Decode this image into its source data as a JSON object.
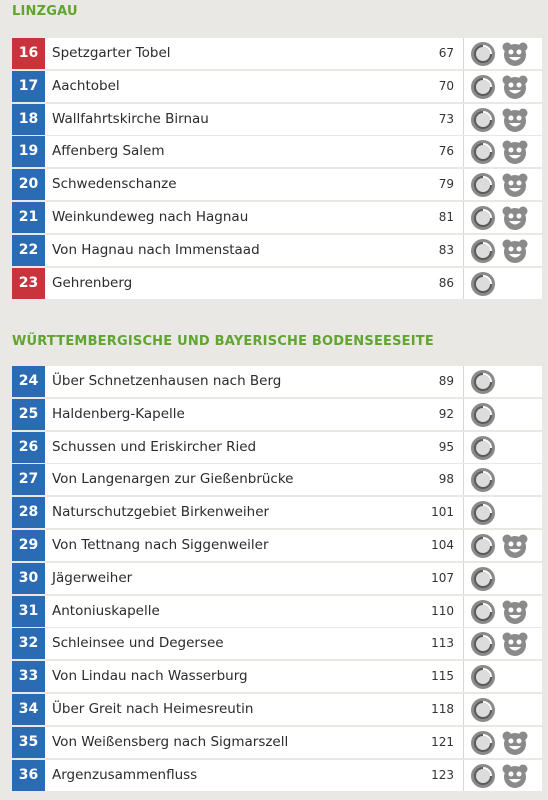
{
  "sections": [
    {
      "title": "LINZGAU",
      "rows": [
        {
          "number": "16",
          "title": "Spetzgarter Tobel",
          "page": "67",
          "color": "#c9343c",
          "kids": true
        },
        {
          "number": "17",
          "title": "Aachtobel",
          "page": "70",
          "color": "#2b6bb3",
          "kids": true
        },
        {
          "number": "18",
          "title": "Wallfahrtskirche Birnau",
          "page": "73",
          "color": "#2b6bb3",
          "kids": true
        },
        {
          "number": "19",
          "title": "Affenberg Salem",
          "page": "76",
          "color": "#2b6bb3",
          "kids": true
        },
        {
          "number": "20",
          "title": "Schwedenschanze",
          "page": "79",
          "color": "#2b6bb3",
          "kids": true
        },
        {
          "number": "21",
          "title": "Weinkundeweg nach Hagnau",
          "page": "81",
          "color": "#2b6bb3",
          "kids": true
        },
        {
          "number": "22",
          "title": "Von Hagnau nach Immenstaad",
          "page": "83",
          "color": "#2b6bb3",
          "kids": true
        },
        {
          "number": "23",
          "title": "Gehrenberg",
          "page": "86",
          "color": "#c9343c",
          "kids": false
        }
      ]
    },
    {
      "title": "WÜRTTEMBERGISCHE UND BAYERISCHE BODENSEESEITE",
      "rows": [
        {
          "number": "24",
          "title": "Über Schnetzenhausen nach Berg",
          "page": "89",
          "color": "#2b6bb3",
          "kids": false
        },
        {
          "number": "25",
          "title": "Haldenberg-Kapelle",
          "page": "92",
          "color": "#2b6bb3",
          "kids": false
        },
        {
          "number": "26",
          "title": "Schussen und Eriskircher Ried",
          "page": "95",
          "color": "#2b6bb3",
          "kids": false
        },
        {
          "number": "27",
          "title": "Von Langenargen zur Gießenbrücke",
          "page": "98",
          "color": "#2b6bb3",
          "kids": false
        },
        {
          "number": "28",
          "title": "Naturschutzgebiet Birkenweiher",
          "page": "101",
          "color": "#2b6bb3",
          "kids": false
        },
        {
          "number": "29",
          "title": "Von Tettnang nach Siggenweiler",
          "page": "104",
          "color": "#2b6bb3",
          "kids": true
        },
        {
          "number": "30",
          "title": "Jägerweiher",
          "page": "107",
          "color": "#2b6bb3",
          "kids": false
        },
        {
          "number": "31",
          "title": "Antoniuskapelle",
          "page": "110",
          "color": "#2b6bb3",
          "kids": true
        },
        {
          "number": "32",
          "title": "Schleinsee und Degersee",
          "page": "113",
          "color": "#2b6bb3",
          "kids": true
        },
        {
          "number": "33",
          "title": "Von Lindau nach Wasserburg",
          "page": "115",
          "color": "#2b6bb3",
          "kids": false
        },
        {
          "number": "34",
          "title": "Über Greit nach Heimesreutin",
          "page": "118",
          "color": "#2b6bb3",
          "kids": false
        },
        {
          "number": "35",
          "title": "Von Weißensberg nach Sigmarszell",
          "page": "121",
          "color": "#2b6bb3",
          "kids": true
        },
        {
          "number": "36",
          "title": "Argenzusammenfluss",
          "page": "123",
          "color": "#2b6bb3",
          "kids": true
        }
      ]
    }
  ]
}
